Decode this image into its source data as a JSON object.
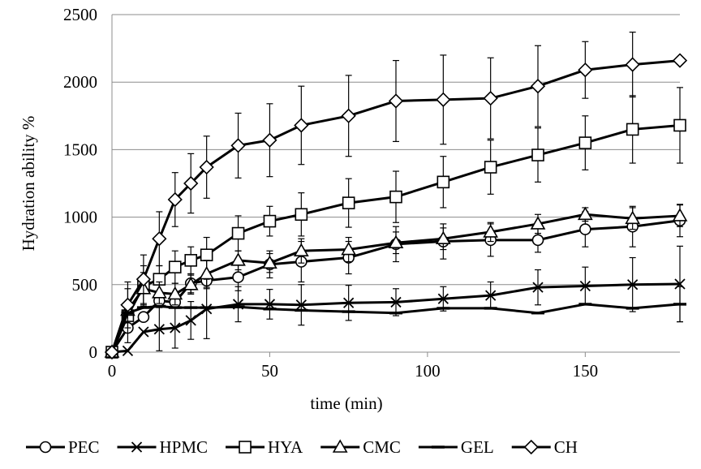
{
  "chart_data": {
    "type": "line",
    "title": "",
    "xlabel": "time (min)",
    "ylabel": "Hydration ability %",
    "xlim": [
      0,
      180
    ],
    "ylim": [
      0,
      2500
    ],
    "xticks": [
      0,
      50,
      100,
      150
    ],
    "yticks": [
      0,
      500,
      1000,
      1500,
      2000,
      2500
    ],
    "grid": "horizontal",
    "legend_position": "bottom",
    "x": [
      0,
      5,
      10,
      15,
      20,
      25,
      30,
      40,
      50,
      60,
      75,
      90,
      105,
      120,
      135,
      150,
      165,
      180
    ],
    "series": [
      {
        "name": "PEC",
        "marker": "circle",
        "values": [
          0,
          180,
          260,
          380,
          370,
          510,
          530,
          555,
          650,
          670,
          700,
          800,
          820,
          830,
          830,
          910,
          930,
          975
        ],
        "errors": [
          null,
          null,
          null,
          null,
          null,
          70,
          60,
          100,
          100,
          150,
          120,
          130,
          130,
          120,
          90,
          130,
          150,
          120
        ]
      },
      {
        "name": "HPMC",
        "marker": "cross",
        "values": [
          0,
          10,
          150,
          170,
          180,
          235,
          320,
          355,
          355,
          350,
          365,
          370,
          395,
          420,
          480,
          490,
          500,
          505
        ],
        "errors": [
          null,
          null,
          null,
          160,
          150,
          140,
          220,
          130,
          110,
          150,
          130,
          100,
          90,
          100,
          130,
          140,
          200,
          280
        ]
      },
      {
        "name": "HYA",
        "marker": "square",
        "values": [
          0,
          270,
          490,
          540,
          630,
          680,
          720,
          880,
          970,
          1020,
          1105,
          1150,
          1260,
          1370,
          1460,
          1550,
          1650,
          1680
        ],
        "errors": [
          null,
          200,
          150,
          100,
          120,
          100,
          130,
          130,
          110,
          160,
          180,
          190,
          190,
          200,
          200,
          200,
          250,
          280
        ]
      },
      {
        "name": "CMC",
        "marker": "triangle",
        "values": [
          0,
          310,
          470,
          440,
          430,
          500,
          580,
          680,
          660,
          750,
          760,
          810,
          840,
          890,
          950,
          1020,
          990,
          1010
        ],
        "errors": [
          null,
          null,
          120,
          80,
          80,
          70,
          100,
          70,
          70,
          90,
          90,
          80,
          80,
          70,
          70,
          50,
          80,
          80
        ]
      },
      {
        "name": "GEL",
        "marker": "dash",
        "values": [
          0,
          290,
          330,
          340,
          330,
          330,
          330,
          335,
          320,
          310,
          300,
          290,
          325,
          325,
          290,
          355,
          325,
          355
        ],
        "errors": [
          null,
          null,
          null,
          null,
          null,
          null,
          null,
          null,
          null,
          null,
          null,
          null,
          null,
          null,
          null,
          null,
          null,
          130
        ]
      },
      {
        "name": "CH",
        "marker": "diamond",
        "values": [
          0,
          350,
          540,
          840,
          1130,
          1250,
          1370,
          1530,
          1570,
          1680,
          1750,
          1860,
          1870,
          1880,
          1970,
          2090,
          2130,
          2160
        ],
        "errors": [
          null,
          170,
          180,
          200,
          200,
          220,
          230,
          240,
          270,
          290,
          300,
          300,
          330,
          300,
          300,
          210,
          240,
          null
        ]
      }
    ]
  }
}
